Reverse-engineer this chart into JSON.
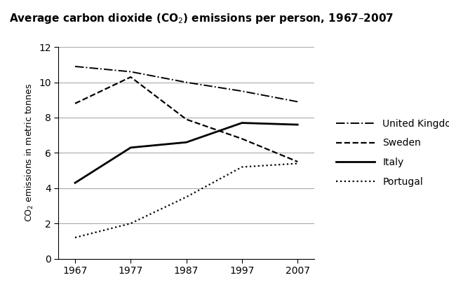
{
  "title": "Average carbon dioxide (CO$_2$) emissions per person, 1967–2007",
  "ylabel": "CO$_2$ emissions in metric tonnes",
  "years": [
    1967,
    1977,
    1987,
    1997,
    2007
  ],
  "series": {
    "United Kingdom": {
      "values": [
        10.9,
        10.6,
        10.0,
        9.5,
        8.9
      ],
      "linestyle": "dashdot",
      "linewidth": 1.4,
      "color": "#000000"
    },
    "Sweden": {
      "values": [
        8.8,
        10.3,
        7.9,
        6.8,
        5.5
      ],
      "linestyle": "dashed",
      "linewidth": 1.6,
      "color": "#000000"
    },
    "Italy": {
      "values": [
        4.3,
        6.3,
        6.6,
        7.7,
        7.6
      ],
      "linestyle": "solid",
      "linewidth": 2.0,
      "color": "#000000"
    },
    "Portugal": {
      "values": [
        1.2,
        2.0,
        3.5,
        5.2,
        5.4
      ],
      "linestyle": "dotted",
      "linewidth": 1.6,
      "color": "#000000"
    }
  },
  "ylim": [
    0,
    12
  ],
  "yticks": [
    0,
    2,
    4,
    6,
    8,
    10,
    12
  ],
  "xticks": [
    1967,
    1977,
    1987,
    1997,
    2007
  ],
  "grid_color": "#aaaaaa",
  "background_color": "#ffffff",
  "title_fontsize": 11,
  "label_fontsize": 9,
  "tick_fontsize": 10,
  "legend_fontsize": 10
}
